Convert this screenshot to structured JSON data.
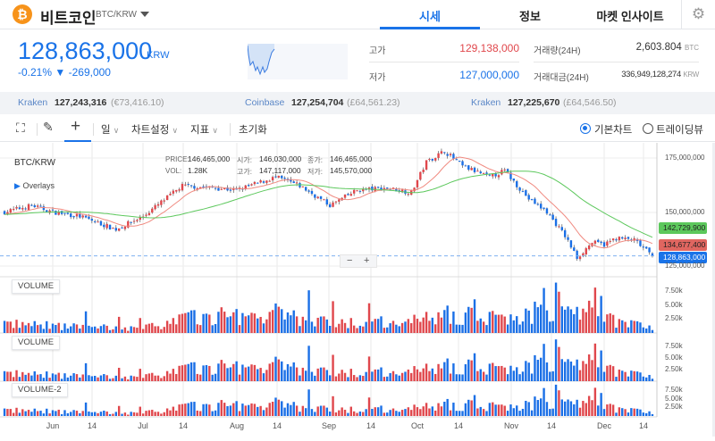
{
  "header": {
    "coin_name": "비트코인",
    "pair": "BTC/KRW",
    "logo_symbol": "₿",
    "tabs": [
      {
        "label": "시세",
        "active": true
      },
      {
        "label": "정보"
      },
      {
        "label": "마켓 인사이트"
      }
    ],
    "settings_icon": "gear-icon"
  },
  "price": {
    "current": "128,863,000",
    "unit": "KRW",
    "change_pct": "-0.21%",
    "change_arrow": "▼",
    "change_abs": "-269,000"
  },
  "stats": {
    "high_label": "고가",
    "high": "129,138,000",
    "low_label": "저가",
    "low": "127,000,000",
    "volume_label": "거래량(24H)",
    "volume": "2,603.804",
    "volume_unit": "BTC",
    "amount_label": "거래대금(24H)",
    "amount": "336,949,128,274",
    "amount_unit": "KRW"
  },
  "exchanges": [
    {
      "name": "Kraken",
      "price": "127,243,316",
      "foreign": "(€73,416.10)"
    },
    {
      "name": "Coinbase",
      "price": "127,254,704",
      "foreign": "(£64,561.23)"
    },
    {
      "name": "Kraken",
      "price": "127,225,670",
      "foreign": "(£64,546.50)"
    }
  ],
  "toolbar": {
    "period": "일",
    "chart_settings": "차트설정",
    "indicators": "지표",
    "reset": "초기화",
    "basic_chart": "기본차트",
    "tradingview": "트레이딩뷰",
    "view_mode": "basic"
  },
  "colors": {
    "accent": "#1a73e8",
    "up": "#e0474c",
    "down": "#1a6fe6",
    "ma_short": "#f08a80",
    "ma_long": "#5cc85c"
  },
  "chart_data": {
    "type": "candlestick",
    "symbol": "BTC/KRW",
    "overlays_label": "Overlays",
    "crosshair": {
      "price_label": "PRICE:",
      "price": "146,465,000",
      "vol_label": "VOL:",
      "vol": "1.28K",
      "open_label": "시가:",
      "open": "146,030,000",
      "high_label": "고가:",
      "high": "147,117,000",
      "close_label": "종가:",
      "close": "146,465,000",
      "low_label": "저가:",
      "low": "145,570,000"
    },
    "x_ticks": [
      "Jun",
      "14",
      "Jul",
      "14",
      "Aug",
      "14",
      "Sep",
      "14",
      "Oct",
      "14",
      "Nov",
      "14",
      "Dec",
      "14"
    ],
    "y_ticks": [
      "175,000,000",
      "150,000,000",
      "125,000,000"
    ],
    "ylim": [
      120500000,
      180000000
    ],
    "price_tags": [
      {
        "value": "142,729,900",
        "color": "#5cc85c"
      },
      {
        "value": "134,677,400",
        "color": "#e06660"
      },
      {
        "value": "128,863,000",
        "color": "#1a73e8"
      }
    ],
    "close_keypoints": [
      [
        "05-16",
        149
      ],
      [
        "05-25",
        152
      ],
      [
        "06-01",
        149
      ],
      [
        "06-10",
        147
      ],
      [
        "06-22",
        141
      ],
      [
        "07-01",
        147
      ],
      [
        "07-14",
        161
      ],
      [
        "07-25",
        160
      ],
      [
        "08-01",
        159
      ],
      [
        "08-14",
        165
      ],
      [
        "08-22",
        161
      ],
      [
        "09-01",
        152
      ],
      [
        "09-10",
        159
      ],
      [
        "09-20",
        160
      ],
      [
        "09-28",
        158
      ],
      [
        "10-03",
        172
      ],
      [
        "10-09",
        177
      ],
      [
        "10-15",
        170
      ],
      [
        "10-24",
        165
      ],
      [
        "10-29",
        168
      ],
      [
        "11-01",
        163
      ],
      [
        "11-06",
        155
      ],
      [
        "11-12",
        149
      ],
      [
        "11-18",
        138
      ],
      [
        "11-22",
        128
      ],
      [
        "11-27",
        135
      ],
      [
        "12-01",
        134
      ],
      [
        "12-05",
        137
      ],
      [
        "12-11",
        136
      ],
      [
        "12-17",
        128.863
      ]
    ],
    "price_unit": "million KRW",
    "volume_panes": [
      {
        "label": "VOLUME",
        "ticks": [
          "7.50k",
          "5.00k",
          "2.50k"
        ]
      },
      {
        "label": "VOLUME",
        "ticks": [
          "7.50k",
          "5.00k",
          "2.50k"
        ]
      },
      {
        "label": "VOLUME-2",
        "ticks": [
          "7.50k",
          "5.00k",
          "2.50k"
        ]
      }
    ],
    "volume_keypoints_k": [
      [
        "05-16",
        2
      ],
      [
        "06-01",
        1.5
      ],
      [
        "07-01",
        1
      ],
      [
        "07-14",
        3
      ],
      [
        "08-14",
        4
      ],
      [
        "09-01",
        2
      ],
      [
        "10-01",
        2.5
      ],
      [
        "10-09",
        4
      ],
      [
        "11-01",
        3
      ],
      [
        "11-12",
        5
      ],
      [
        "11-20",
        6
      ],
      [
        "12-01",
        3
      ],
      [
        "12-17",
        1.5
      ]
    ],
    "zoom_out": "−",
    "zoom_in": "+"
  }
}
